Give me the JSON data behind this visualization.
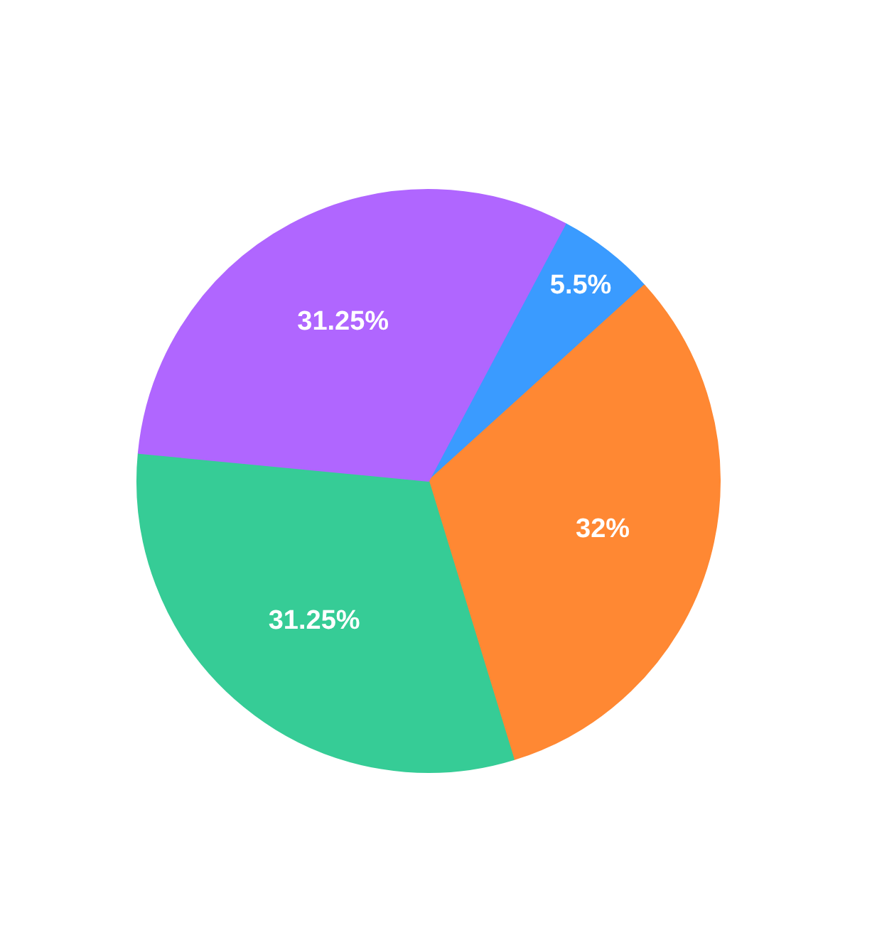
{
  "chart_data": {
    "type": "pie",
    "categories": [
      null,
      null,
      null,
      null
    ],
    "values": [
      5.5,
      32,
      31.25,
      31.25
    ],
    "colors": [
      "#3a9bff",
      "#ff8833",
      "#36cc96",
      "#b066ff"
    ],
    "value_labels": [
      "5.5%",
      "32%",
      "31.25%",
      "31.25%"
    ]
  }
}
